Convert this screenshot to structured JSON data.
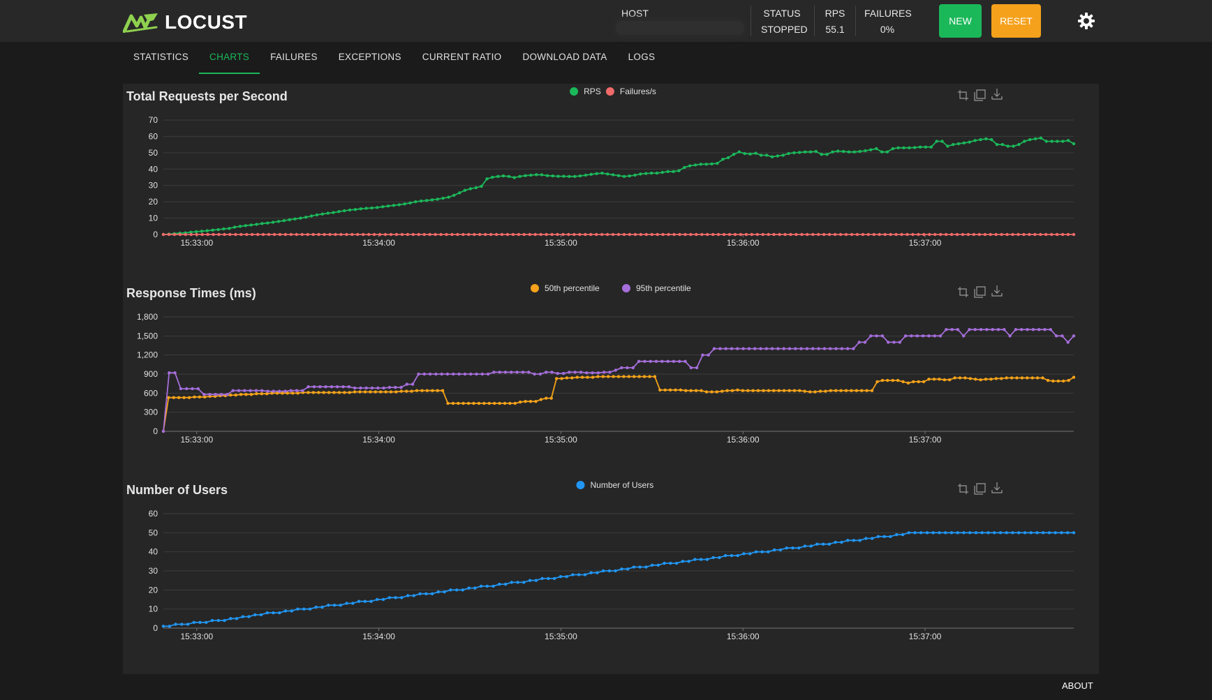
{
  "app": {
    "name": "LOCUST"
  },
  "header": {
    "host_label": "HOST",
    "status_label": "STATUS",
    "status_value": "STOPPED",
    "rps_label": "RPS",
    "rps_value": "55.1",
    "failures_label": "FAILURES",
    "failures_value": "0%",
    "new_label": "NEW",
    "reset_label": "RESET",
    "icons": {
      "theme_toggle": "gear-icon",
      "logo": "locust-logo-icon"
    }
  },
  "tabs": [
    {
      "label": "STATISTICS",
      "active": false
    },
    {
      "label": "CHARTS",
      "active": true
    },
    {
      "label": "FAILURES",
      "active": false
    },
    {
      "label": "EXCEPTIONS",
      "active": false
    },
    {
      "label": "CURRENT RATIO",
      "active": false
    },
    {
      "label": "DOWNLOAD DATA",
      "active": false
    },
    {
      "label": "LOGS",
      "active": false
    }
  ],
  "footer": {
    "about_label": "ABOUT"
  },
  "colors": {
    "rps": "#1bb85a",
    "failures": "#f16a6a",
    "p50": "#f5a31a",
    "p95": "#a56edb",
    "users": "#2196f3",
    "accent": "#1bb85a"
  },
  "toolbox_icons": [
    "zoom-in-icon",
    "zoom-reset-icon",
    "download-icon"
  ],
  "chart_data": [
    {
      "type": "line",
      "title": "Total Requests per Second",
      "x_ticks": [
        "15:33:00",
        "15:34:00",
        "15:35:00",
        "15:36:00",
        "15:37:00"
      ],
      "x_range": [
        "15:32:49",
        "15:37:49"
      ],
      "ylim": [
        0,
        70
      ],
      "y_ticks": [
        "0",
        "10",
        "20",
        "30",
        "40",
        "50",
        "60",
        "70"
      ],
      "grid": true,
      "legend": "top-center",
      "series": [
        {
          "name": "RPS",
          "color": "#1bb85a",
          "values": [
            0,
            0.2,
            0.5,
            0.8,
            1,
            1.4,
            1.7,
            2,
            2.3,
            2.7,
            3,
            3.4,
            3.7,
            4.5,
            5,
            5.4,
            5.8,
            6.2,
            6.7,
            7,
            7.5,
            8,
            8.5,
            9,
            9.5,
            10,
            10.6,
            11.3,
            12,
            12.5,
            13,
            13.4,
            14,
            14.5,
            15,
            15.3,
            15.7,
            16,
            16.2,
            16.5,
            17,
            17.4,
            17.8,
            18.2,
            18.7,
            19.3,
            20,
            20.5,
            20.8,
            21.2,
            21.6,
            22.2,
            22.8,
            24,
            25.5,
            27,
            28,
            28.6,
            29.5,
            34,
            35,
            35.5,
            35.8,
            35.5,
            34.8,
            35.5,
            36,
            36.3,
            36.6,
            36.5,
            36,
            35.8,
            35.6,
            35.6,
            35.5,
            35.5,
            35.8,
            36.3,
            36.8,
            37.2,
            37.5,
            37,
            36.5,
            36,
            35.5,
            35.8,
            36.3,
            37,
            37.3,
            37.5,
            37.5,
            38,
            38.5,
            38.5,
            39,
            41,
            42,
            42.5,
            43,
            43,
            43.2,
            43.5,
            46,
            47,
            49,
            50.5,
            49.5,
            49.2,
            49.7,
            48.5,
            48.5,
            47.5,
            48,
            48.5,
            49.5,
            50,
            50.2,
            50.5,
            50.5,
            50.8,
            49,
            49,
            50.5,
            51,
            50.8,
            50.5,
            50.5,
            50.8,
            51.2,
            51.8,
            52.5,
            50.5,
            50.5,
            52.5,
            53,
            53,
            53,
            53.2,
            53.5,
            53.5,
            53.5,
            57,
            57,
            54,
            55,
            55.5,
            56,
            56.5,
            57.5,
            58,
            58.5,
            58,
            55,
            55,
            54,
            54,
            55,
            57,
            58,
            58.5,
            59,
            57,
            57,
            57,
            57,
            57.5,
            55.5
          ]
        },
        {
          "name": "Failures/s",
          "color": "#f16a6a",
          "values": [
            0,
            0,
            0,
            0,
            0,
            0,
            0,
            0,
            0,
            0,
            0,
            0,
            0,
            0,
            0,
            0,
            0,
            0,
            0,
            0,
            0,
            0,
            0,
            0,
            0,
            0,
            0,
            0,
            0,
            0,
            0,
            0,
            0,
            0,
            0,
            0,
            0,
            0,
            0,
            0,
            0,
            0,
            0,
            0,
            0,
            0,
            0,
            0,
            0,
            0,
            0,
            0,
            0,
            0,
            0,
            0,
            0,
            0,
            0,
            0,
            0,
            0,
            0,
            0,
            0,
            0,
            0,
            0,
            0,
            0,
            0,
            0,
            0,
            0,
            0,
            0,
            0,
            0,
            0,
            0,
            0,
            0,
            0,
            0,
            0,
            0,
            0,
            0,
            0,
            0,
            0,
            0,
            0,
            0,
            0,
            0,
            0,
            0,
            0,
            0,
            0,
            0,
            0,
            0,
            0,
            0,
            0,
            0,
            0,
            0,
            0,
            0,
            0,
            0,
            0,
            0,
            0,
            0,
            0,
            0,
            0,
            0,
            0,
            0,
            0,
            0,
            0,
            0,
            0,
            0,
            0,
            0,
            0,
            0,
            0,
            0,
            0,
            0,
            0,
            0,
            0,
            0,
            0,
            0,
            0,
            0,
            0,
            0,
            0,
            0,
            0,
            0,
            0,
            0,
            0,
            0,
            0,
            0,
            0,
            0,
            0,
            0,
            0,
            0,
            0
          ]
        }
      ]
    },
    {
      "type": "line",
      "title": "Response Times (ms)",
      "x_ticks": [
        "15:33:00",
        "15:34:00",
        "15:35:00",
        "15:36:00",
        "15:37:00"
      ],
      "x_range": [
        "15:32:49",
        "15:37:49"
      ],
      "ylim": [
        0,
        1800
      ],
      "y_ticks": [
        "0",
        "300",
        "600",
        "900",
        "1,200",
        "1,500",
        "1,800"
      ],
      "grid": true,
      "legend": "top-center",
      "series": [
        {
          "name": "50th percentile",
          "color": "#f5a31a",
          "values": [
            0,
            530,
            530,
            530,
            530,
            530,
            540,
            540,
            540,
            550,
            550,
            560,
            560,
            570,
            570,
            580,
            580,
            580,
            590,
            590,
            590,
            600,
            600,
            600,
            600,
            600,
            600,
            610,
            610,
            610,
            610,
            610,
            610,
            610,
            610,
            610,
            610,
            620,
            620,
            620,
            620,
            620,
            620,
            620,
            620,
            620,
            630,
            630,
            630,
            640,
            640,
            640,
            640,
            640,
            640,
            440,
            440,
            440,
            440,
            440,
            440,
            440,
            440,
            440,
            440,
            440,
            440,
            440,
            440,
            460,
            470,
            470,
            470,
            500,
            520,
            520,
            830,
            830,
            840,
            840,
            850,
            850,
            850,
            850,
            860,
            860,
            860,
            860,
            860,
            860,
            860,
            860,
            860,
            860,
            860,
            860,
            650,
            650,
            650,
            650,
            650,
            640,
            640,
            640,
            640,
            620,
            620,
            620,
            630,
            640,
            640,
            650,
            640,
            640,
            640,
            640,
            640,
            640,
            640,
            640,
            640,
            640,
            640,
            640,
            630,
            620,
            620,
            630,
            630,
            640,
            640,
            640,
            640,
            640,
            640,
            640,
            640,
            640,
            780,
            800,
            800,
            800,
            800,
            780,
            760,
            780,
            780,
            780,
            820,
            820,
            820,
            810,
            810,
            840,
            840,
            840,
            830,
            820,
            810,
            820,
            820,
            830,
            830,
            840,
            840,
            840,
            840,
            840,
            840,
            840,
            840,
            800,
            790,
            790,
            790,
            800,
            850
          ]
        },
        {
          "name": "95th percentile",
          "color": "#a56edb",
          "values": [
            0,
            920,
            920,
            670,
            670,
            670,
            670,
            580,
            580,
            580,
            580,
            580,
            640,
            640,
            640,
            640,
            640,
            640,
            630,
            630,
            630,
            630,
            640,
            640,
            640,
            700,
            700,
            700,
            700,
            700,
            700,
            700,
            700,
            680,
            680,
            680,
            680,
            680,
            680,
            690,
            690,
            690,
            740,
            740,
            900,
            900,
            900,
            900,
            900,
            900,
            900,
            900,
            900,
            900,
            900,
            900,
            900,
            930,
            930,
            930,
            930,
            930,
            930,
            930,
            900,
            900,
            930,
            930,
            910,
            910,
            930,
            930,
            930,
            920,
            920,
            920,
            930,
            930,
            960,
            1000,
            1000,
            1000,
            1100,
            1100,
            1100,
            1100,
            1100,
            1100,
            1100,
            1100,
            1100,
            1000,
            1000,
            1200,
            1200,
            1300,
            1300,
            1300,
            1300,
            1300,
            1300,
            1300,
            1300,
            1300,
            1300,
            1300,
            1300,
            1300,
            1300,
            1300,
            1300,
            1300,
            1300,
            1300,
            1300,
            1300,
            1300,
            1300,
            1300,
            1300,
            1400,
            1400,
            1500,
            1500,
            1500,
            1400,
            1400,
            1400,
            1500,
            1500,
            1500,
            1500,
            1500,
            1500,
            1500,
            1600,
            1600,
            1600,
            1500,
            1600,
            1600,
            1600,
            1600,
            1600,
            1600,
            1600,
            1500,
            1600,
            1600,
            1600,
            1600,
            1600,
            1600,
            1600,
            1500,
            1500,
            1400,
            1500
          ]
        }
      ]
    },
    {
      "type": "line",
      "title": "Number of Users",
      "x_ticks": [
        "15:33:00",
        "15:34:00",
        "15:35:00",
        "15:36:00",
        "15:37:00"
      ],
      "x_range": [
        "15:32:49",
        "15:37:49"
      ],
      "ylim": [
        0,
        60
      ],
      "y_ticks": [
        "0",
        "10",
        "20",
        "30",
        "40",
        "50",
        "60"
      ],
      "grid": true,
      "legend": "top-center",
      "series": [
        {
          "name": "Number of Users",
          "color": "#2196f3",
          "values": [
            1,
            1,
            2,
            2,
            2,
            3,
            3,
            3,
            4,
            4,
            4,
            5,
            5,
            6,
            6,
            7,
            7,
            8,
            8,
            8,
            9,
            9,
            10,
            10,
            10,
            11,
            11,
            12,
            12,
            12,
            13,
            13,
            14,
            14,
            14,
            15,
            15,
            16,
            16,
            16,
            17,
            17,
            18,
            18,
            18,
            19,
            19,
            20,
            20,
            20,
            21,
            21,
            22,
            22,
            22,
            23,
            23,
            24,
            24,
            24,
            25,
            25,
            26,
            26,
            26,
            27,
            27,
            28,
            28,
            28,
            29,
            29,
            30,
            30,
            30,
            31,
            31,
            32,
            32,
            32,
            33,
            33,
            34,
            34,
            34,
            35,
            35,
            36,
            36,
            36,
            37,
            37,
            38,
            38,
            38,
            39,
            39,
            40,
            40,
            40,
            41,
            41,
            42,
            42,
            42,
            43,
            43,
            44,
            44,
            44,
            45,
            45,
            46,
            46,
            46,
            47,
            47,
            48,
            48,
            48,
            49,
            49,
            50,
            50,
            50,
            50,
            50,
            50,
            50,
            50,
            50,
            50,
            50,
            50,
            50,
            50,
            50,
            50,
            50,
            50,
            50,
            50,
            50,
            50,
            50,
            50,
            50,
            50,
            50,
            50
          ]
        }
      ]
    }
  ]
}
